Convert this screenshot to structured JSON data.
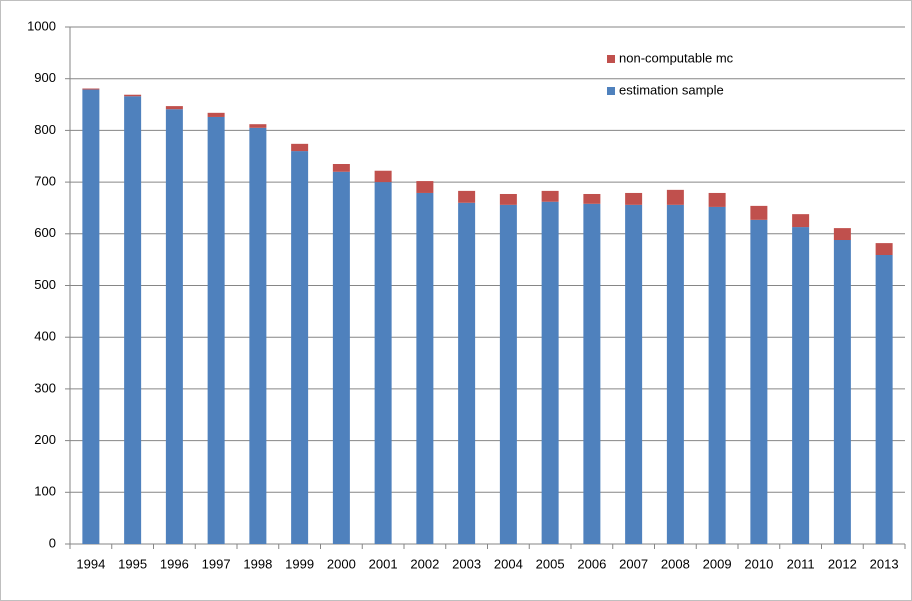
{
  "chart_data": {
    "type": "stacked-bar",
    "categories": [
      "1994",
      "1995",
      "1996",
      "1997",
      "1998",
      "1999",
      "2000",
      "2001",
      "2002",
      "2003",
      "2004",
      "2005",
      "2006",
      "2007",
      "2008",
      "2009",
      "2010",
      "2011",
      "2012",
      "2013"
    ],
    "series": [
      {
        "name": "estimation sample",
        "color": "#4f81bd",
        "values": [
          879,
          866,
          841,
          826,
          805,
          760,
          720,
          700,
          679,
          660,
          656,
          662,
          658,
          656,
          656,
          652,
          627,
          613,
          588,
          559
        ]
      },
      {
        "name": "non-computable mc",
        "color": "#c0504d",
        "values": [
          2,
          3,
          6,
          8,
          7,
          14,
          15,
          22,
          23,
          23,
          21,
          21,
          19,
          23,
          29,
          27,
          27,
          25,
          23,
          23
        ]
      }
    ],
    "ylim": [
      0,
      1000
    ],
    "yticks": [
      0,
      100,
      200,
      300,
      400,
      500,
      600,
      700,
      800,
      900,
      1000
    ],
    "grid": true,
    "legend": "upper-right"
  }
}
